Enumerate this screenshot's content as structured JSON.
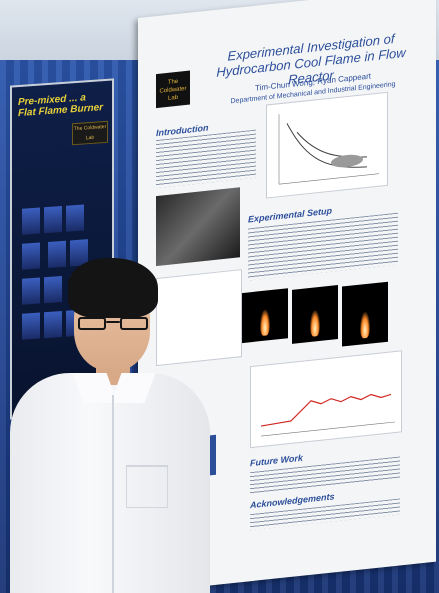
{
  "main_poster": {
    "title_line1": "Experimental Investigation of",
    "title_line2": "Hydrocarbon Cool Flame in Flow Reactor",
    "authors": "Tim-Chun Wong, Ryan Cappeart",
    "department": "Department of Mechanical and Industrial Engineering",
    "sections": {
      "introduction": "Introduction",
      "experimental_setup": "Experimental Setup",
      "future_work": "Future Work",
      "acknowledgements": "Acknowledgements"
    },
    "logo_text": "The Coldwater Lab"
  },
  "left_poster": {
    "title": "Pre-mixed ... a Flat Flame Burner",
    "logo_text": "The Coldwater Lab"
  },
  "colors": {
    "drape_blue": "#1e3f8c",
    "poster_title_blue": "#2b4e9a",
    "left_poster_title": "#e9d23a"
  }
}
